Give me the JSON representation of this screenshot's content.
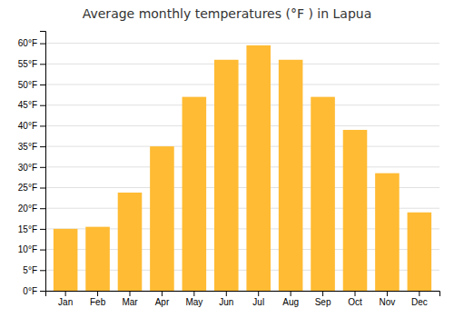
{
  "chart_data": {
    "type": "bar",
    "title": "Average monthly temperatures (°F ) in Lapua",
    "categories": [
      "Jan",
      "Feb",
      "Mar",
      "Apr",
      "May",
      "Jun",
      "Jul",
      "Aug",
      "Sep",
      "Oct",
      "Nov",
      "Dec"
    ],
    "values": [
      15.0,
      15.5,
      23.8,
      35.0,
      47.0,
      56.0,
      59.5,
      56.0,
      47.0,
      39.0,
      28.5,
      19.0
    ],
    "color": "#FFBB33",
    "ylim": [
      0,
      63
    ],
    "yticks": [
      {
        "value": 0,
        "label": "0°F"
      },
      {
        "value": 5,
        "label": "5°F"
      },
      {
        "value": 10,
        "label": "10°F"
      },
      {
        "value": 15,
        "label": "15°F"
      },
      {
        "value": 20,
        "label": "20°F"
      },
      {
        "value": 25,
        "label": "25°F"
      },
      {
        "value": 30,
        "label": "30°F"
      },
      {
        "value": 35,
        "label": "35°F"
      },
      {
        "value": 40,
        "label": "40°F"
      },
      {
        "value": 45,
        "label": "45°F"
      },
      {
        "value": 50,
        "label": "50°F"
      },
      {
        "value": 55,
        "label": "55°F"
      },
      {
        "value": 60,
        "label": "60°F"
      }
    ],
    "grid": true
  }
}
